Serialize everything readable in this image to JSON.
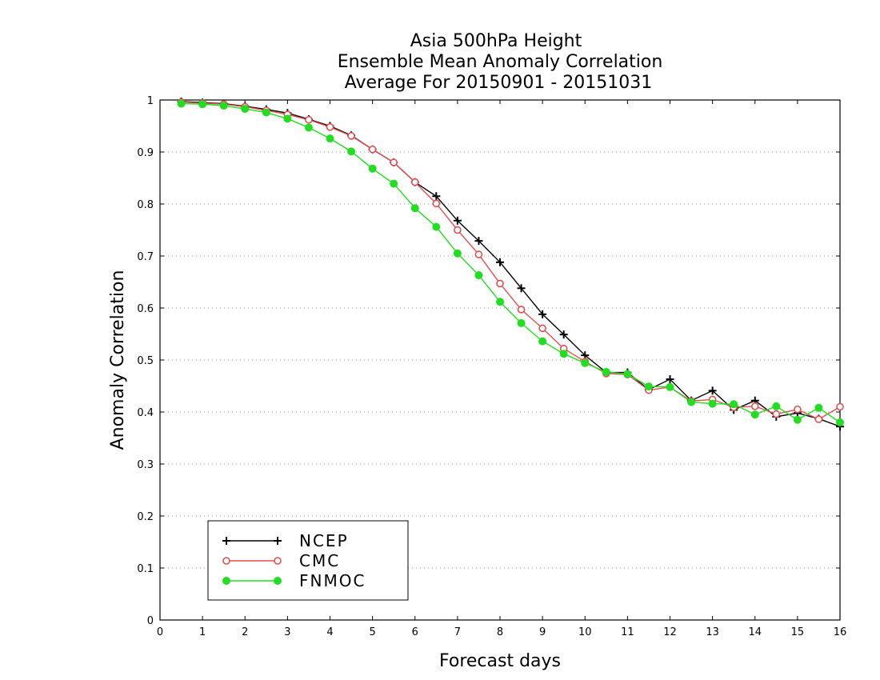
{
  "chart_data": {
    "type": "line",
    "title": [
      "Asia 500hPa Height",
      "Ensemble Mean Anomaly Correlation",
      "Average For 20150901 - 20151031"
    ],
    "xlabel": "Forecast days",
    "ylabel": "Anomaly Correlation",
    "xlim": [
      0,
      16
    ],
    "ylim": [
      0,
      1
    ],
    "x_ticks": [
      "0",
      "1",
      "2",
      "3",
      "4",
      "5",
      "6",
      "7",
      "8",
      "9",
      "10",
      "11",
      "12",
      "13",
      "14",
      "15",
      "16"
    ],
    "y_ticks": [
      "0",
      "0.1",
      "0.2",
      "0.3",
      "0.4",
      "0.5",
      "0.6",
      "0.7",
      "0.8",
      "0.9",
      "1"
    ],
    "grid": "horizontal-dotted",
    "legend_position": "bottom-left",
    "x": [
      0.5,
      1,
      1.5,
      2,
      2.5,
      3,
      3.5,
      4,
      4.5,
      5,
      5.5,
      6,
      6.5,
      7,
      7.5,
      8,
      8.5,
      9,
      9.5,
      10,
      10.5,
      11,
      11.5,
      12,
      12.5,
      13,
      13.5,
      14,
      14.5,
      15,
      15.5,
      16
    ],
    "series": [
      {
        "name": "NCEP",
        "color": "#000000",
        "marker": "plus",
        "values": [
          0.997,
          0.995,
          0.993,
          0.988,
          0.982,
          0.975,
          0.963,
          0.95,
          0.932,
          0.905,
          0.88,
          0.842,
          0.815,
          0.768,
          0.729,
          0.688,
          0.638,
          0.588,
          0.549,
          0.509,
          0.476,
          0.476,
          0.443,
          0.463,
          0.422,
          0.441,
          0.404,
          0.422,
          0.391,
          0.398,
          0.387,
          0.372
        ]
      },
      {
        "name": "CMC",
        "color": "#e05050",
        "marker": "open-circle",
        "values": [
          0.996,
          0.994,
          0.992,
          0.987,
          0.98,
          0.972,
          0.962,
          0.948,
          0.931,
          0.905,
          0.88,
          0.842,
          0.801,
          0.75,
          0.703,
          0.647,
          0.597,
          0.561,
          0.522,
          0.497,
          0.474,
          0.472,
          0.442,
          0.448,
          0.421,
          0.424,
          0.409,
          0.411,
          0.396,
          0.405,
          0.386,
          0.41
        ]
      },
      {
        "name": "FNMOC",
        "color": "#22dd22",
        "marker": "filled-circle",
        "values": [
          0.993,
          0.992,
          0.989,
          0.983,
          0.976,
          0.964,
          0.947,
          0.926,
          0.901,
          0.868,
          0.839,
          0.792,
          0.756,
          0.705,
          0.663,
          0.612,
          0.571,
          0.536,
          0.512,
          0.494,
          0.477,
          0.473,
          0.449,
          0.448,
          0.419,
          0.416,
          0.415,
          0.395,
          0.411,
          0.385,
          0.408,
          0.38
        ]
      }
    ]
  }
}
